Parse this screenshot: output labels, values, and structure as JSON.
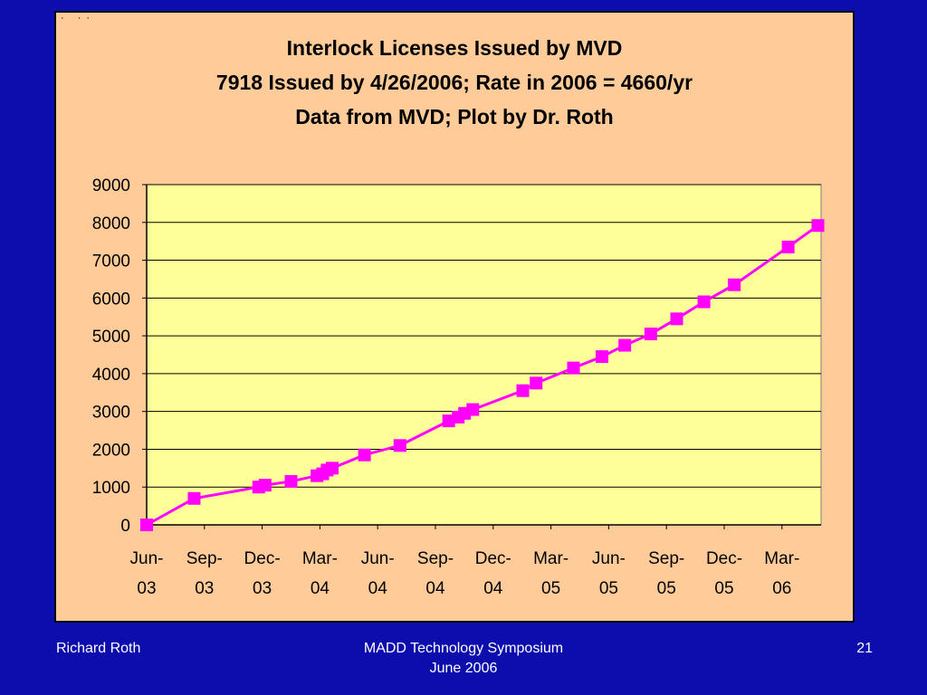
{
  "corner_mark": "· ··",
  "footer": {
    "author": "Richard Roth",
    "event_line1": "MADD Technology Symposium",
    "event_line2": "June 2006",
    "slide_number": "21"
  },
  "colors": {
    "slide_background": "#0d0dad",
    "panel": "#ffcc99",
    "plot_area": "#ffff99",
    "series": "#ff00ff"
  },
  "chart_data": {
    "type": "line",
    "title_lines": [
      "Interlock Licenses Issued by MVD",
      "7918 Issued by 4/26/2006;   Rate in 2006 = 4660/yr",
      "Data from MVD; Plot by Dr. Roth"
    ],
    "xlabel": "",
    "ylabel": "",
    "x_tick_labels": [
      [
        "Jun-",
        "03"
      ],
      [
        "Sep-",
        "03"
      ],
      [
        "Dec-",
        "03"
      ],
      [
        "Mar-",
        "04"
      ],
      [
        "Jun-",
        "04"
      ],
      [
        "Sep-",
        "04"
      ],
      [
        "Dec-",
        "04"
      ],
      [
        "Mar-",
        "05"
      ],
      [
        "Jun-",
        "05"
      ],
      [
        "Sep-",
        "05"
      ],
      [
        "Dec-",
        "05"
      ],
      [
        "Mar-",
        "06"
      ]
    ],
    "xlim": [
      "2003-06-01",
      "2006-05-01"
    ],
    "ylim": [
      0,
      9000
    ],
    "y_ticks": [
      0,
      1000,
      2000,
      3000,
      4000,
      5000,
      6000,
      7000,
      8000,
      9000
    ],
    "grid": "horizontal",
    "legend": "none",
    "marker": "square",
    "series": [
      {
        "points": [
          [
            "2003-06-01",
            0
          ],
          [
            "2003-08-15",
            700
          ],
          [
            "2003-11-25",
            1000
          ],
          [
            "2003-12-05",
            1050
          ],
          [
            "2004-01-15",
            1150
          ],
          [
            "2004-02-25",
            1300
          ],
          [
            "2004-03-05",
            1350
          ],
          [
            "2004-03-12",
            1450
          ],
          [
            "2004-03-20",
            1500
          ],
          [
            "2004-05-10",
            1850
          ],
          [
            "2004-07-05",
            2100
          ],
          [
            "2004-09-20",
            2750
          ],
          [
            "2004-10-05",
            2850
          ],
          [
            "2004-10-15",
            2950
          ],
          [
            "2004-10-28",
            3050
          ],
          [
            "2005-01-15",
            3550
          ],
          [
            "2005-02-05",
            3750
          ],
          [
            "2005-04-05",
            4150
          ],
          [
            "2005-05-20",
            4450
          ],
          [
            "2005-06-25",
            4750
          ],
          [
            "2005-08-05",
            5050
          ],
          [
            "2005-09-15",
            5450
          ],
          [
            "2005-10-28",
            5900
          ],
          [
            "2005-12-15",
            6350
          ],
          [
            "2006-03-10",
            7350
          ],
          [
            "2006-04-26",
            7918
          ]
        ]
      }
    ]
  }
}
